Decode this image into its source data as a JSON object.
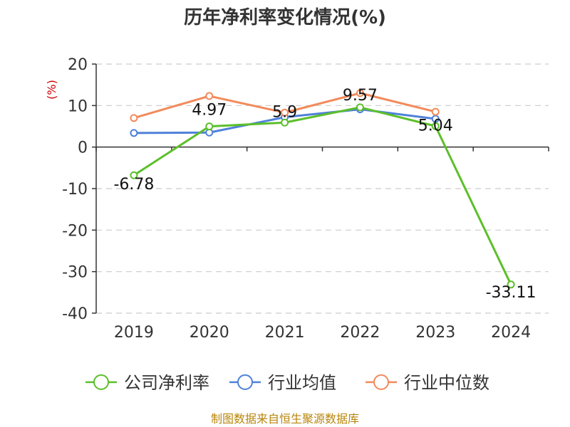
{
  "chart_data": {
    "type": "line",
    "title": "历年净利率变化情况(%)",
    "ylabel": "(%)",
    "xlabel": "",
    "categories": [
      "2019",
      "2020",
      "2021",
      "2022",
      "2023",
      "2024"
    ],
    "ylim": [
      -40,
      20
    ],
    "yticks": [
      20,
      10,
      0,
      -10,
      -20,
      -30,
      -40
    ],
    "grid": true,
    "legend_position": "bottom",
    "series": [
      {
        "name": "公司净利率",
        "color": "#5cbf2a",
        "values": [
          -6.78,
          4.97,
          5.9,
          9.57,
          5.04,
          -33.11
        ],
        "labels": [
          "-6.78",
          "4.97",
          "5.9",
          "9.57",
          "5.04",
          "-33.11"
        ]
      },
      {
        "name": "行业均值",
        "color": "#4f81d9",
        "values": [
          3.4,
          3.5,
          7.2,
          9.1,
          6.8,
          null
        ]
      },
      {
        "name": "行业中位数",
        "color": "#f28a5a",
        "values": [
          7.0,
          12.3,
          8.3,
          13.0,
          8.5,
          null
        ]
      }
    ],
    "source": "制图数据来自恒生聚源数据库"
  }
}
